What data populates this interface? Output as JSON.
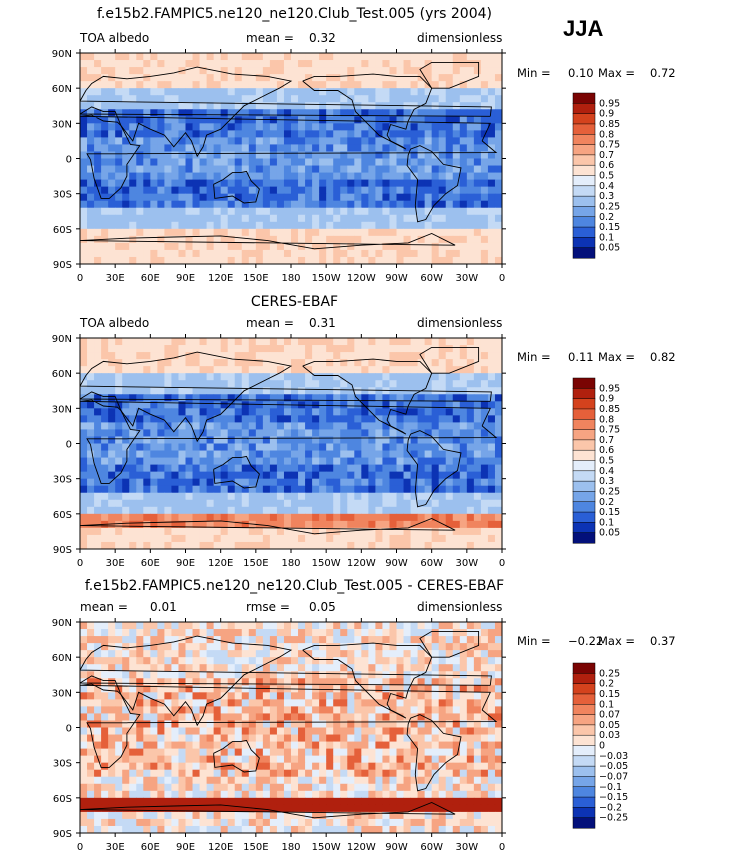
{
  "season": "JJA",
  "chart_data": [
    {
      "type": "heatmap",
      "title": "f.e15b2.FAMPIC5.ne120_ne120.Club_Test.005 (yrs 2004)",
      "variable": "TOA albedo",
      "units": "dimensionless",
      "stat1_label": "mean =",
      "stat1_value": "0.32",
      "stat2_label": "",
      "stat2_value": "",
      "min_label": "Min =",
      "min_value": "0.10",
      "max_label": "Max =",
      "max_value": "0.72",
      "xlabels": [
        "0",
        "30E",
        "60E",
        "90E",
        "120E",
        "150E",
        "180",
        "150W",
        "120W",
        "90W",
        "60W",
        "30W",
        "0"
      ],
      "ylabels": [
        "90N",
        "60N",
        "30N",
        "0",
        "30S",
        "60S",
        "90S"
      ],
      "levels": [
        "0.95",
        "0.9",
        "0.85",
        "0.8",
        "0.75",
        "0.7",
        "0.6",
        "0.5",
        "0.4",
        "0.3",
        "0.25",
        "0.2",
        "0.15",
        "0.1",
        "0.05"
      ],
      "colors": [
        "#7a0403",
        "#b0200e",
        "#d4421d",
        "#e5603a",
        "#f0845e",
        "#f6a482",
        "#fbc6aa",
        "#fde3d3",
        "#e4eefb",
        "#c4daf5",
        "#9cc0ee",
        "#76a5e8",
        "#4e86e0",
        "#2a5fd6",
        "#0c33b4",
        "#03107a"
      ]
    },
    {
      "type": "heatmap",
      "title": "CERES-EBAF",
      "variable": "TOA albedo",
      "units": "dimensionless",
      "stat1_label": "mean =",
      "stat1_value": "0.31",
      "stat2_label": "",
      "stat2_value": "",
      "min_label": "Min =",
      "min_value": "0.11",
      "max_label": "Max =",
      "max_value": "0.82",
      "xlabels": [
        "0",
        "30E",
        "60E",
        "90E",
        "120E",
        "150E",
        "180",
        "150W",
        "120W",
        "90W",
        "60W",
        "30W",
        "0"
      ],
      "ylabels": [
        "90N",
        "60N",
        "30N",
        "0",
        "30S",
        "60S",
        "90S"
      ],
      "levels": [
        "0.95",
        "0.9",
        "0.85",
        "0.8",
        "0.75",
        "0.7",
        "0.6",
        "0.5",
        "0.4",
        "0.3",
        "0.25",
        "0.2",
        "0.15",
        "0.1",
        "0.05"
      ],
      "colors": [
        "#7a0403",
        "#b0200e",
        "#d4421d",
        "#e5603a",
        "#f0845e",
        "#f6a482",
        "#fbc6aa",
        "#fde3d3",
        "#e4eefb",
        "#c4daf5",
        "#9cc0ee",
        "#76a5e8",
        "#4e86e0",
        "#2a5fd6",
        "#0c33b4",
        "#03107a"
      ]
    },
    {
      "type": "heatmap",
      "title": "f.e15b2.FAMPIC5.ne120_ne120.Club_Test.005 - CERES-EBAF",
      "variable": "",
      "units": "dimensionless",
      "stat1_label": "mean =",
      "stat1_value": "0.01",
      "stat2_label": "rmse =",
      "stat2_value": "0.05",
      "min_label": "Min =",
      "min_value": "−0.22",
      "max_label": "Max =",
      "max_value": "0.37",
      "xlabels": [
        "0",
        "30E",
        "60E",
        "90E",
        "120E",
        "150E",
        "180",
        "150W",
        "120W",
        "90W",
        "60W",
        "30W",
        "0"
      ],
      "ylabels": [
        "90N",
        "60N",
        "30N",
        "0",
        "30S",
        "60S",
        "90S"
      ],
      "levels": [
        "0.25",
        "0.2",
        "0.15",
        "0.1",
        "0.07",
        "0.05",
        "0.03",
        "0",
        "−0.03",
        "−0.05",
        "−0.07",
        "−0.1",
        "−0.15",
        "−0.2",
        "−0.25"
      ],
      "colors": [
        "#7a0403",
        "#b0200e",
        "#d4421d",
        "#e5603a",
        "#f0845e",
        "#f6a482",
        "#fbc6aa",
        "#fde3d3",
        "#e4eefb",
        "#c4daf5",
        "#9cc0ee",
        "#76a5e8",
        "#4e86e0",
        "#2a5fd6",
        "#0c33b4",
        "#03107a"
      ]
    }
  ]
}
